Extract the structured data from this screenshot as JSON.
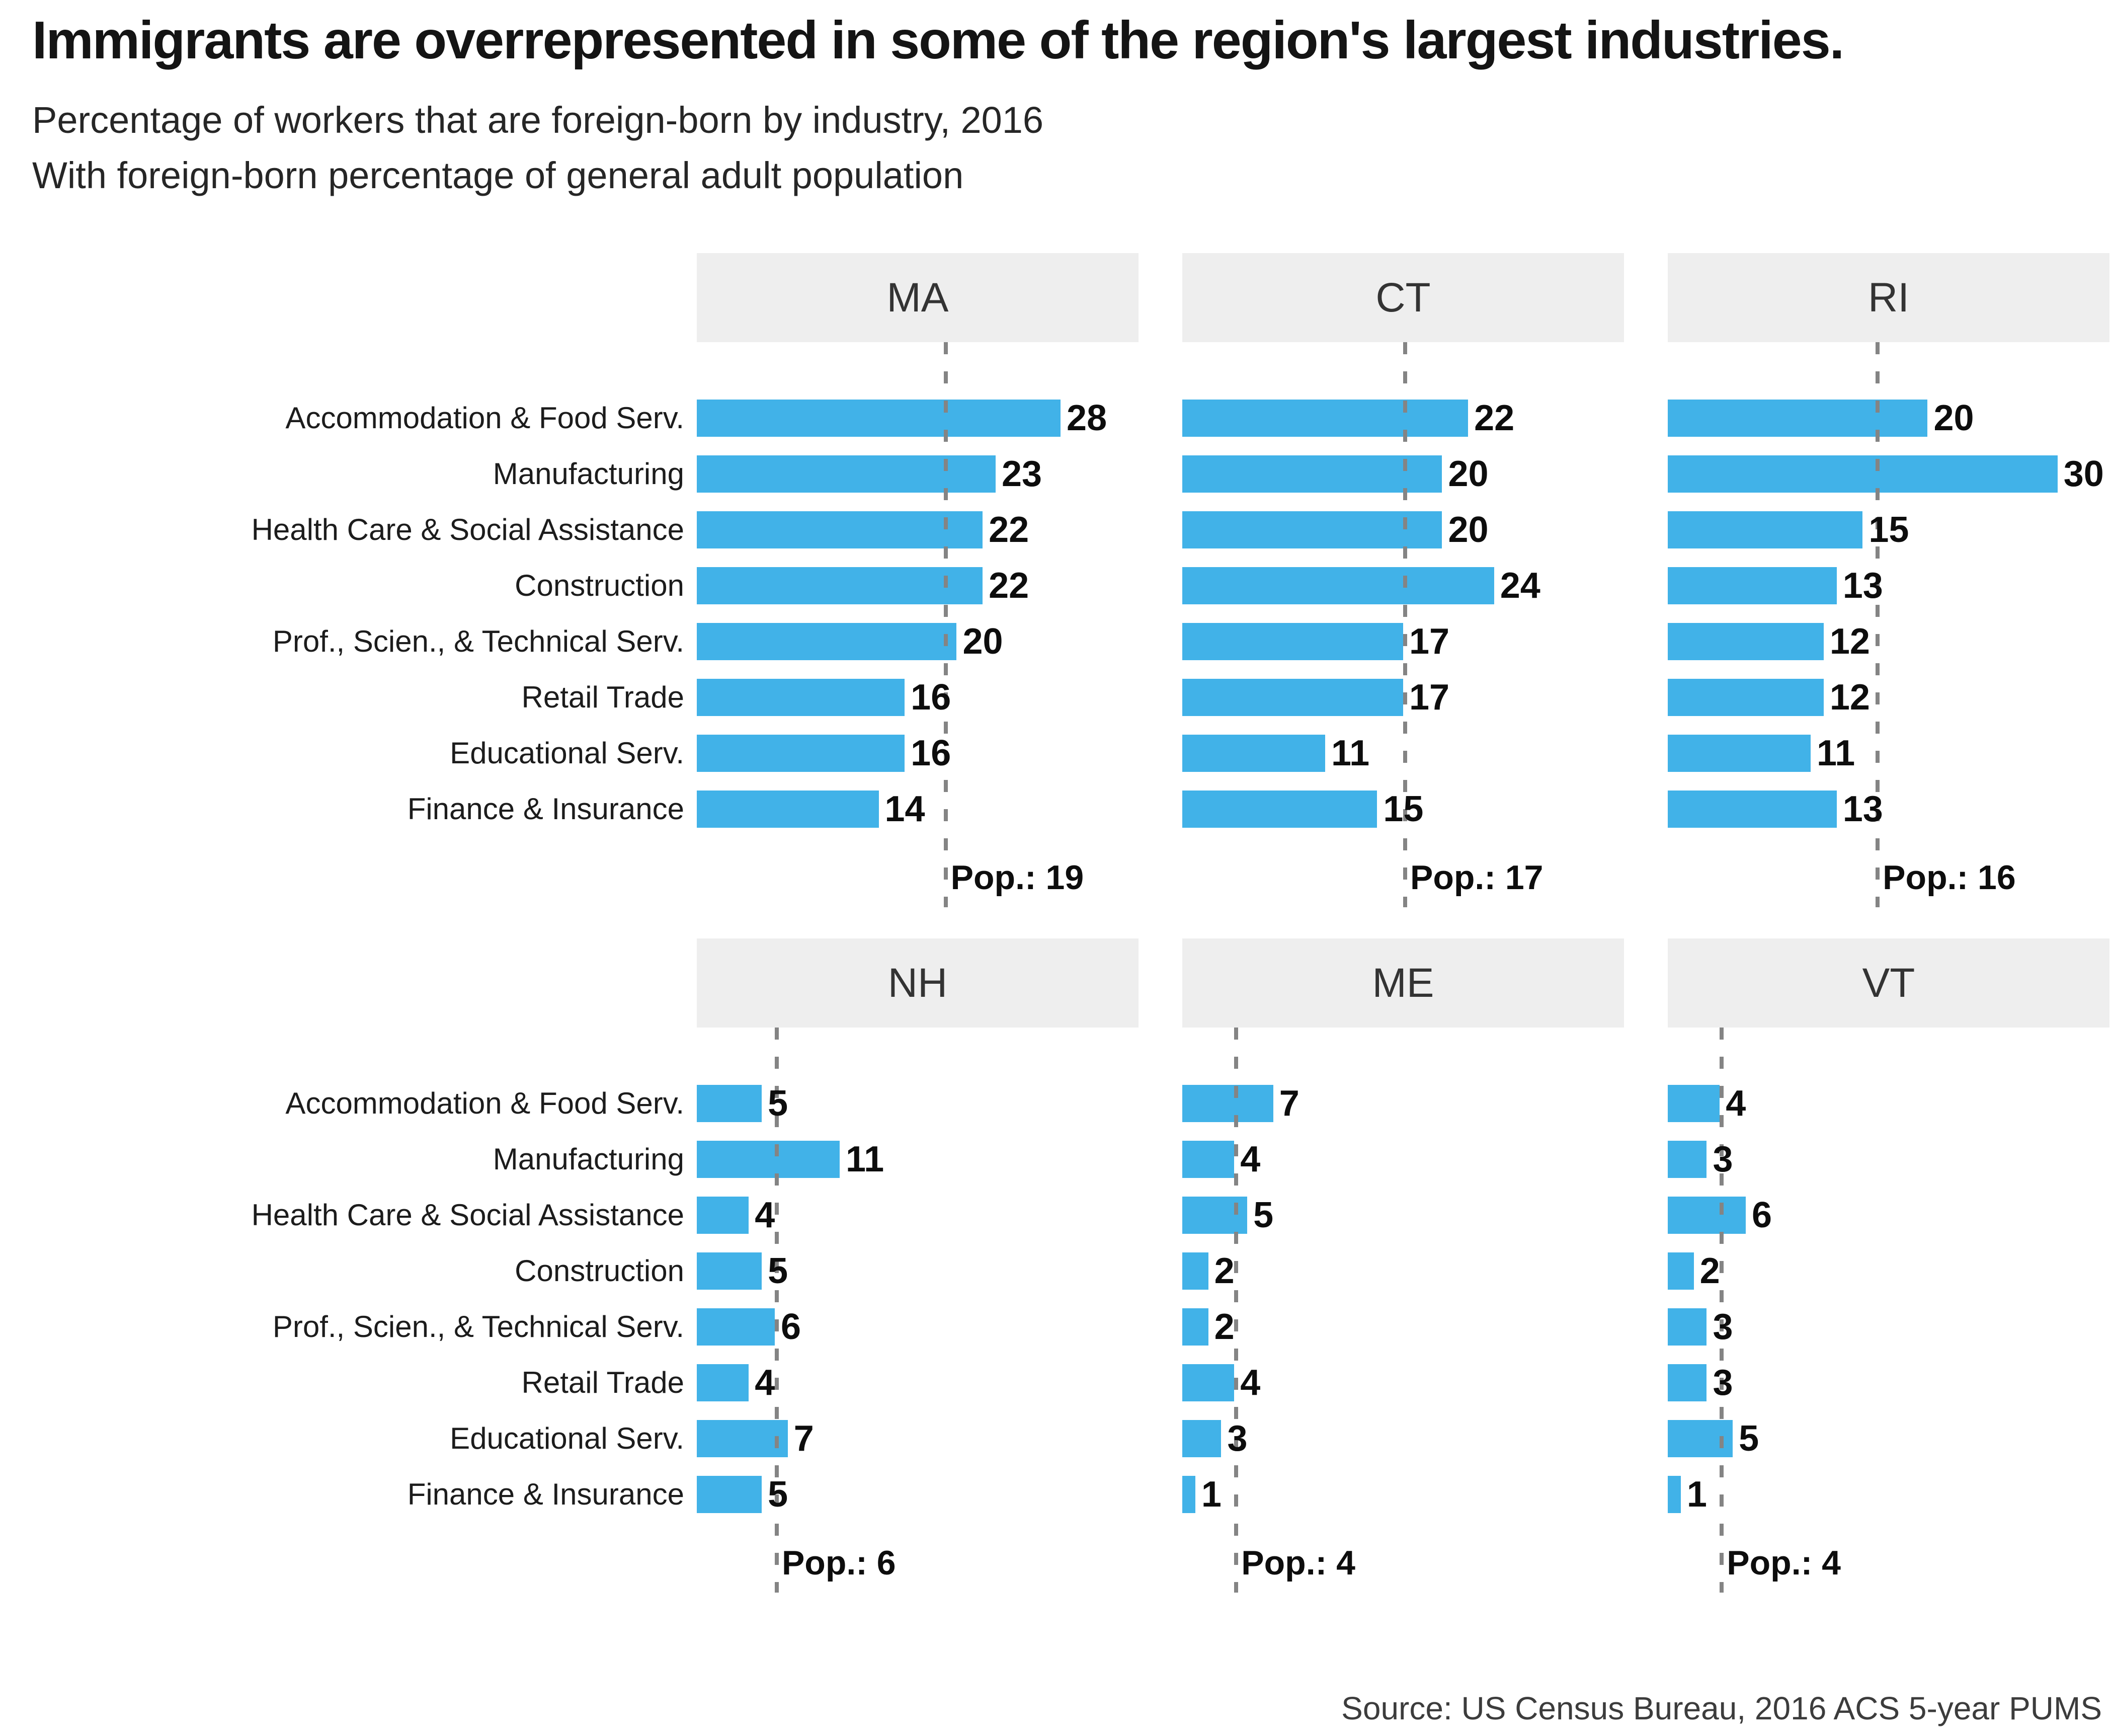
{
  "header": {
    "title": "Immigrants are overrepresented in some of the region's largest industries.",
    "subtitle_line1": "Percentage of workers that are foreign-born by industry, 2016",
    "subtitle_line2": "With foreign-born percentage of general adult population"
  },
  "source_note": "Source: US Census Bureau, 2016 ACS 5-year PUMS",
  "colors": {
    "bar": "#41b2e8",
    "header_bg": "#eeeeee",
    "dash": "#848484"
  },
  "chart_data": {
    "type": "bar",
    "orientation": "horizontal",
    "x_max": 34,
    "grid": false,
    "legend": "none",
    "categories": [
      "Accommodation & Food Serv.",
      "Manufacturing",
      "Health Care & Social Assistance",
      "Construction",
      "Prof., Scien., & Technical Serv.",
      "Retail Trade",
      "Educational Serv.",
      "Finance & Insurance"
    ],
    "reference_line_meaning": "foreign-born percentage of general adult population",
    "panels": [
      {
        "state": "MA",
        "pop": 19,
        "pop_label": "Pop.: 19",
        "values": [
          28,
          23,
          22,
          22,
          20,
          16,
          16,
          14
        ]
      },
      {
        "state": "CT",
        "pop": 17,
        "pop_label": "Pop.: 17",
        "values": [
          22,
          20,
          20,
          24,
          17,
          17,
          11,
          15
        ]
      },
      {
        "state": "RI",
        "pop": 16,
        "pop_label": "Pop.: 16",
        "values": [
          20,
          30,
          15,
          13,
          12,
          12,
          11,
          13
        ]
      },
      {
        "state": "NH",
        "pop": 6,
        "pop_label": "Pop.: 6",
        "values": [
          5,
          11,
          4,
          5,
          6,
          4,
          7,
          5
        ]
      },
      {
        "state": "ME",
        "pop": 4,
        "pop_label": "Pop.: 4",
        "values": [
          7,
          4,
          5,
          2,
          2,
          4,
          3,
          1
        ]
      },
      {
        "state": "VT",
        "pop": 4,
        "pop_label": "Pop.: 4",
        "values": [
          4,
          3,
          6,
          2,
          3,
          3,
          5,
          1
        ]
      }
    ]
  }
}
